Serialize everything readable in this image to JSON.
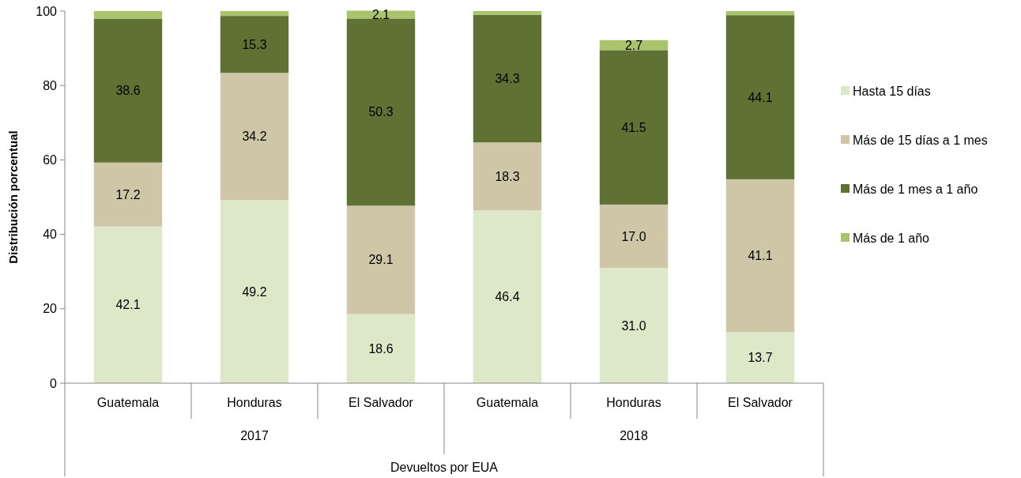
{
  "chart_data": {
    "type": "bar",
    "stacked": true,
    "ylabel": "Distribución porcentual",
    "xlabel": "Devueltos por EUA",
    "categories": [
      "Guatemala",
      "Honduras",
      "El Salvador",
      "Guatemala",
      "Honduras",
      "El Salvador"
    ],
    "annotations": [
      "2017",
      "2018"
    ],
    "ylim": [
      0,
      100
    ],
    "yticks": [
      0,
      20,
      40,
      60,
      80,
      100
    ],
    "grid": false,
    "legend": "right",
    "series": [
      {
        "name": "Hasta 15 días",
        "color": "#dde8c9",
        "values": [
          42.1,
          49.2,
          18.6,
          46.4,
          31.0,
          13.7
        ],
        "value_labels": [
          "42.1",
          "49.2",
          "18.6",
          "46.4",
          "31.0",
          "13.7"
        ]
      },
      {
        "name": "Más de 15 días a 1 mes",
        "color": "#cfc6a7",
        "values": [
          17.2,
          34.2,
          29.1,
          18.3,
          17.0,
          41.1
        ],
        "value_labels": [
          "17.2",
          "34.2",
          "29.1",
          "18.3",
          "17.0",
          "41.1"
        ]
      },
      {
        "name": "Más de 1 mes a 1 año",
        "color": "#5f7234",
        "values": [
          38.6,
          15.3,
          50.3,
          34.3,
          41.5,
          44.1
        ],
        "value_labels": [
          "38.6",
          "15.3",
          "50.3",
          "34.3",
          "41.5",
          "44.1"
        ]
      },
      {
        "name": "Más de 1 año",
        "color": "#a9c46c",
        "values": [
          2.1,
          1.3,
          2.1,
          1.0,
          2.7,
          1.1
        ],
        "value_labels": [
          null,
          null,
          "2.1",
          null,
          "2.7",
          null
        ]
      }
    ]
  }
}
